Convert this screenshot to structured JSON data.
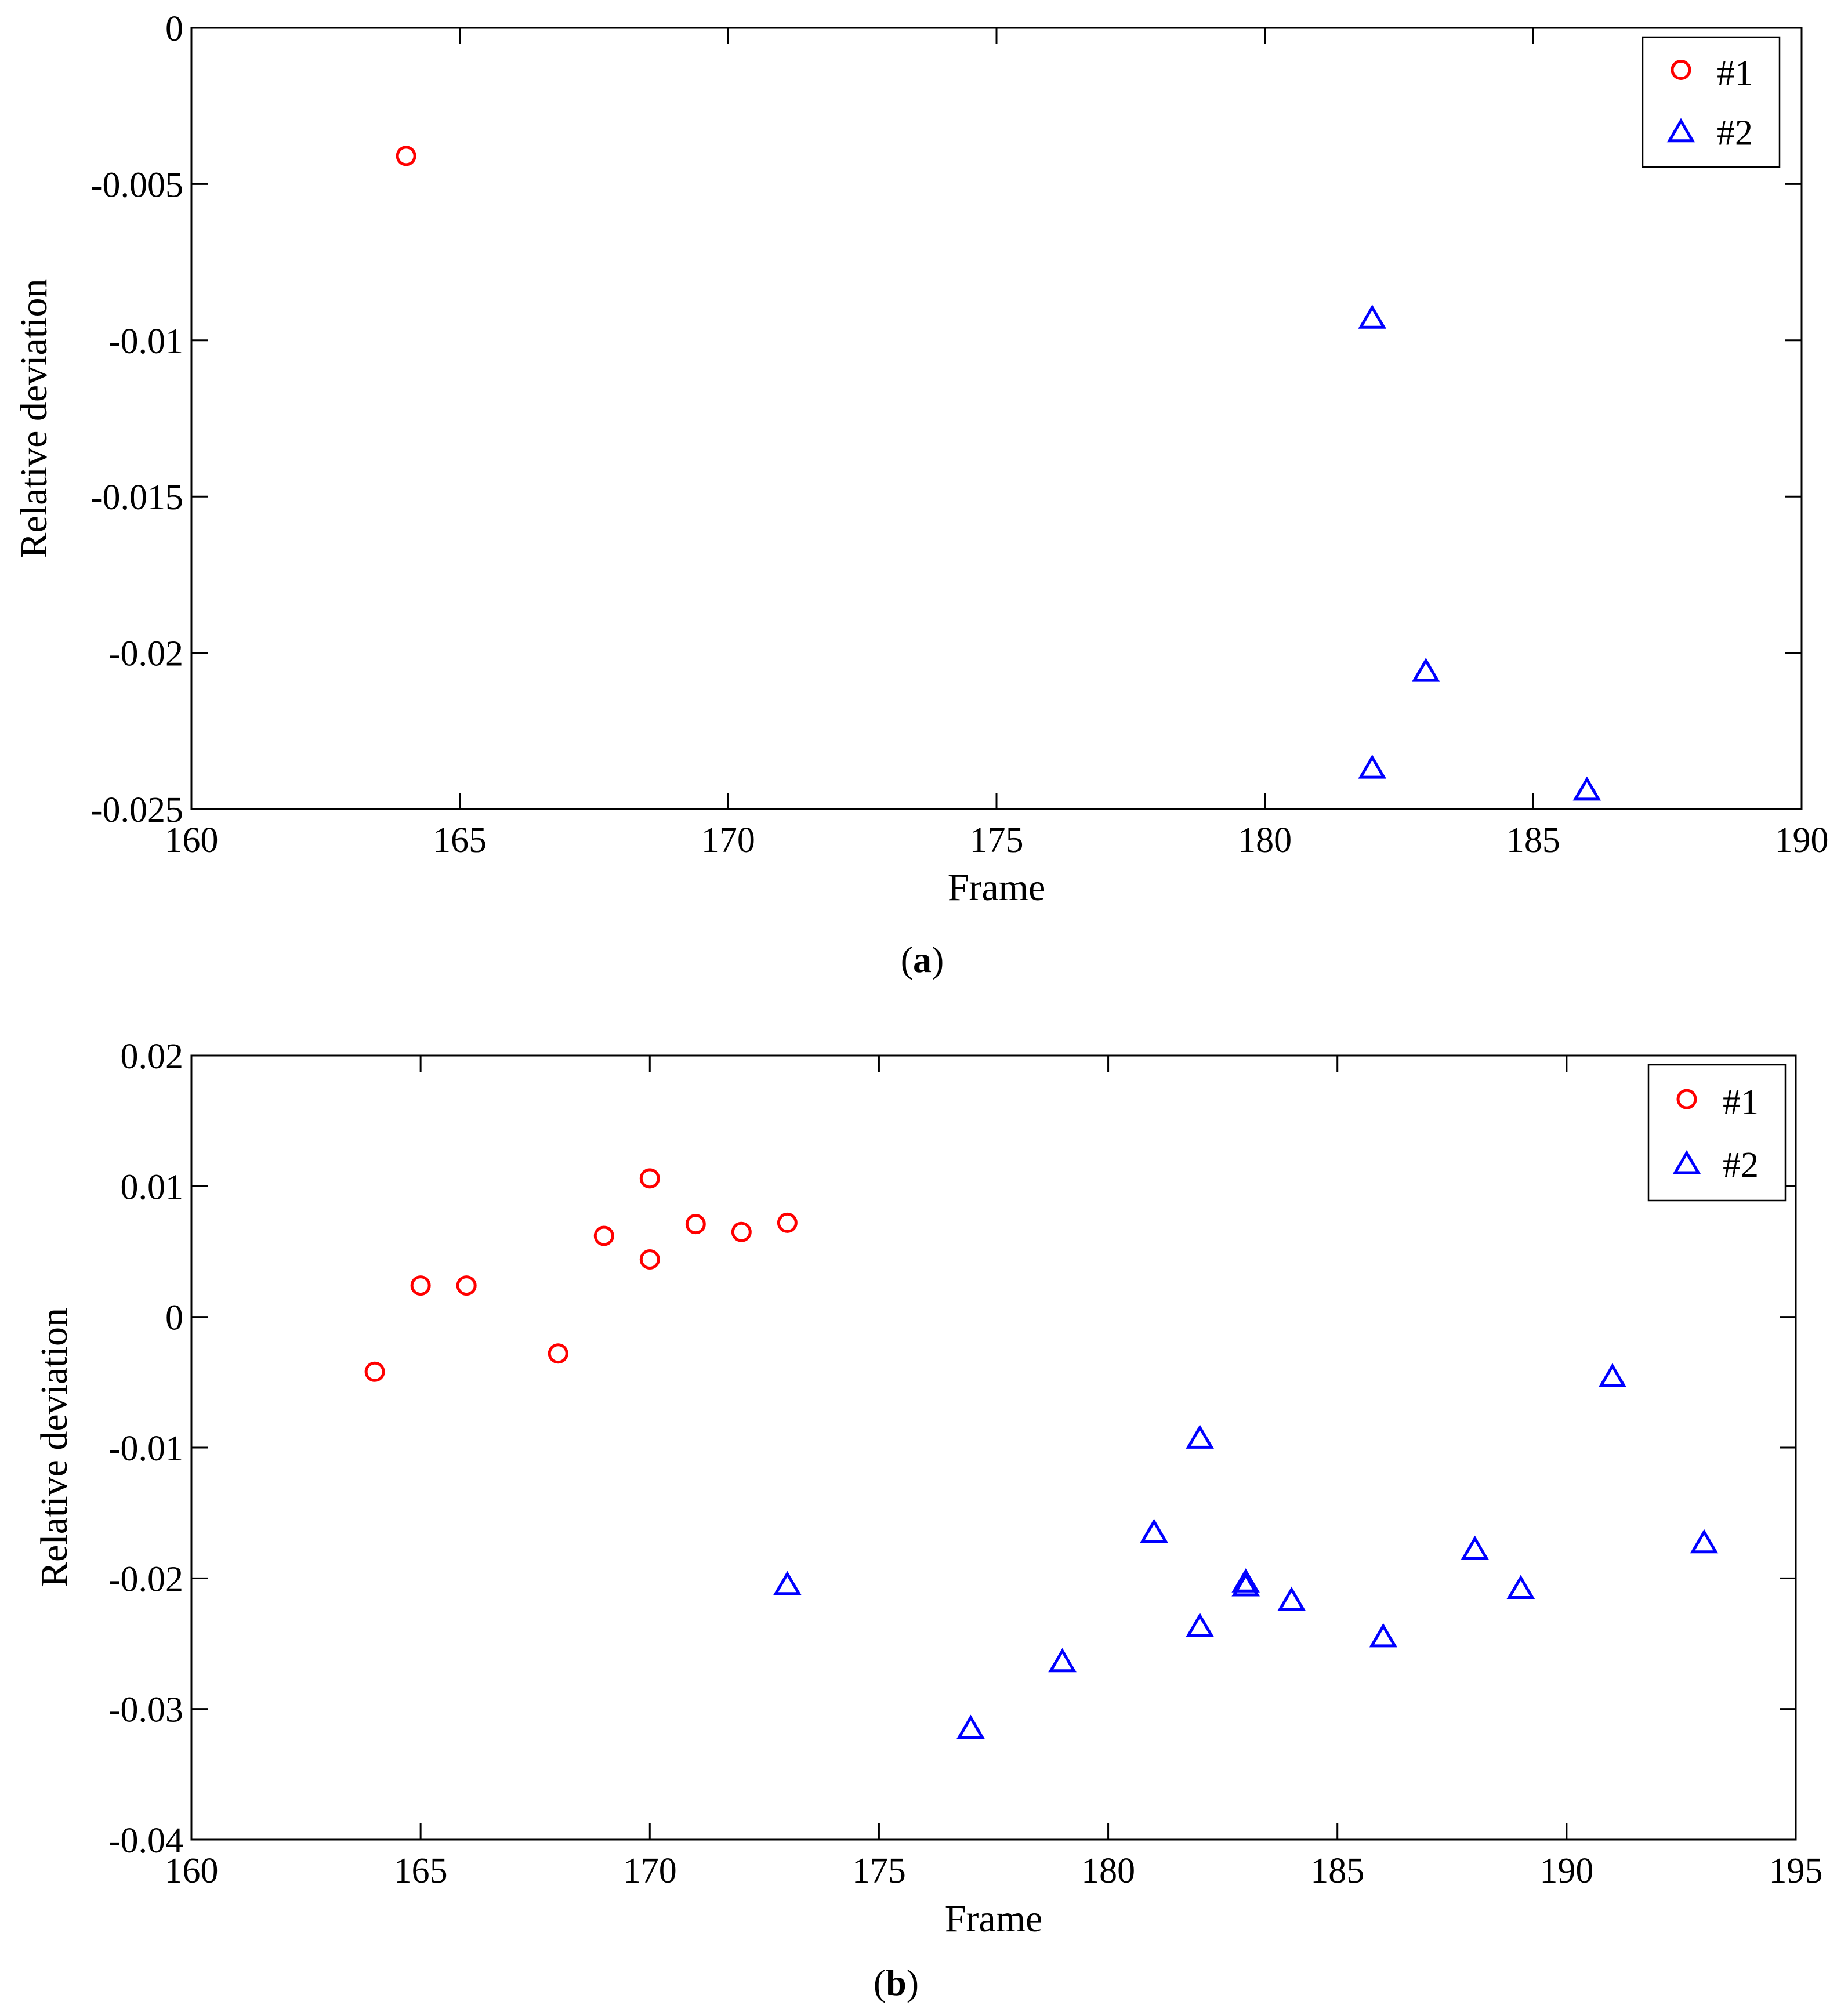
{
  "chart_data": [
    {
      "type": "scatter",
      "panel": "a",
      "caption_open": "(",
      "caption_letter": "a",
      "caption_close": ")",
      "title": "",
      "xlabel": "Frame",
      "ylabel": "Relative deviation",
      "xlim": [
        160,
        190
      ],
      "ylim": [
        -0.025,
        0
      ],
      "xticks": [
        160,
        165,
        170,
        175,
        180,
        185,
        190
      ],
      "yticks": [
        0,
        -0.005,
        -0.01,
        -0.015,
        -0.02,
        -0.025
      ],
      "xtick_labels": [
        "160",
        "165",
        "170",
        "175",
        "180",
        "185",
        "190"
      ],
      "ytick_labels": [
        "0",
        "-0.005",
        "-0.01",
        "-0.015",
        "-0.02",
        "-0.025"
      ],
      "grid": false,
      "legend_position": "top-right",
      "series": [
        {
          "name": "#1",
          "marker": "circle",
          "color": "#ff0000",
          "points": [
            [
              164,
              -0.0041
            ]
          ]
        },
        {
          "name": "#2",
          "marker": "triangle",
          "color": "#0000ff",
          "points": [
            [
              182,
              -0.0093
            ],
            [
              183,
              -0.0206
            ],
            [
              182,
              -0.0237
            ],
            [
              186,
              -0.0244
            ]
          ]
        }
      ]
    },
    {
      "type": "scatter",
      "panel": "b",
      "caption_open": "(",
      "caption_letter": "b",
      "caption_close": ")",
      "title": "",
      "xlabel": "Frame",
      "ylabel": "Relative deviation",
      "xlim": [
        160,
        195
      ],
      "ylim": [
        -0.04,
        0.02
      ],
      "xticks": [
        160,
        165,
        170,
        175,
        180,
        185,
        190,
        195
      ],
      "yticks": [
        0.02,
        0.01,
        0,
        -0.01,
        -0.02,
        -0.03,
        -0.04
      ],
      "xtick_labels": [
        "160",
        "165",
        "170",
        "175",
        "180",
        "185",
        "190",
        "195"
      ],
      "ytick_labels": [
        "0.02",
        "0.01",
        "0",
        "-0.01",
        "-0.02",
        "-0.03",
        "-0.04"
      ],
      "grid": false,
      "legend_position": "top-right",
      "series": [
        {
          "name": "#1",
          "marker": "circle",
          "color": "#ff0000",
          "points": [
            [
              164,
              -0.0042
            ],
            [
              165,
              0.0024
            ],
            [
              166,
              0.0024
            ],
            [
              168,
              -0.0028
            ],
            [
              169,
              0.0062
            ],
            [
              170,
              0.0106
            ],
            [
              170,
              0.0044
            ],
            [
              171,
              0.0071
            ],
            [
              172,
              0.0065
            ],
            [
              173,
              0.0072
            ]
          ]
        },
        {
          "name": "#2",
          "marker": "triangle",
          "color": "#0000ff",
          "points": [
            [
              173,
              -0.0205
            ],
            [
              177,
              -0.0315
            ],
            [
              179,
              -0.0264
            ],
            [
              181,
              -0.0165
            ],
            [
              182,
              -0.0093
            ],
            [
              182,
              -0.0237
            ],
            [
              183,
              -0.0203
            ],
            [
              183,
              -0.0206
            ],
            [
              184,
              -0.0217
            ],
            [
              186,
              -0.0245
            ],
            [
              188,
              -0.0178
            ],
            [
              189,
              -0.0208
            ],
            [
              191,
              -0.0046
            ],
            [
              193,
              -0.0173
            ]
          ]
        }
      ]
    }
  ]
}
